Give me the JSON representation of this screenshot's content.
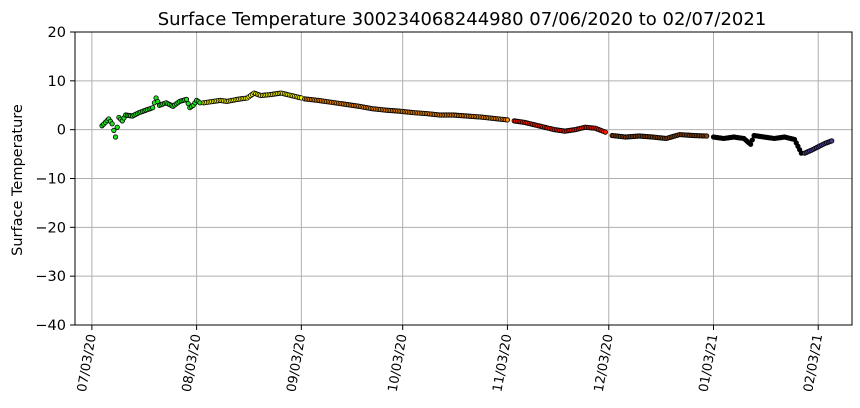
{
  "chart_data": {
    "type": "scatter",
    "title": "Surface Temperature 300234068244980  07/06/2020 to 02/07/2021",
    "xlabel": "",
    "ylabel": "Surface Temperature",
    "x_type": "date",
    "xlim": [
      "2020-06-28",
      "2021-02-13"
    ],
    "ylim": [
      -40,
      20
    ],
    "yticks": [
      -40,
      -30,
      -20,
      -10,
      0,
      10,
      20
    ],
    "ytick_labels": [
      "−40",
      "−30",
      "−20",
      "−10",
      "0",
      "10",
      "20"
    ],
    "xticks": [
      "2020-07-03",
      "2020-08-03",
      "2020-09-03",
      "2020-10-03",
      "2020-11-03",
      "2020-12-03",
      "2021-01-03",
      "2021-02-03"
    ],
    "xtick_labels": [
      "07/03/20",
      "08/03/20",
      "09/03/20",
      "10/03/20",
      "11/03/20",
      "12/03/20",
      "01/03/21",
      "02/03/21"
    ],
    "grid": true,
    "marker_edge_color": "#000000",
    "series": [
      {
        "color": "#22e522",
        "points": [
          [
            "2020-07-06",
            0.8
          ],
          [
            "2020-07-07",
            1.5
          ],
          [
            "2020-07-08",
            2.2
          ],
          [
            "2020-07-09",
            1.2
          ],
          [
            "2020-07-10",
            -1.5
          ],
          [
            "2020-07-11",
            2.5
          ],
          [
            "2020-07-12",
            1.8
          ],
          [
            "2020-07-13",
            3.0
          ],
          [
            "2020-07-15",
            2.8
          ],
          [
            "2020-07-17",
            3.5
          ],
          [
            "2020-07-19",
            4.0
          ],
          [
            "2020-07-21",
            4.5
          ],
          [
            "2020-07-22",
            6.5
          ],
          [
            "2020-07-23",
            5.0
          ],
          [
            "2020-07-25",
            5.5
          ],
          [
            "2020-07-27",
            4.8
          ],
          [
            "2020-07-29",
            5.8
          ],
          [
            "2020-07-31",
            6.2
          ],
          [
            "2020-08-01",
            4.5
          ],
          [
            "2020-08-02",
            5.0
          ],
          [
            "2020-08-03",
            6.0
          ],
          [
            "2020-08-04",
            5.5
          ]
        ]
      },
      {
        "color": "#ffff00",
        "points": [
          [
            "2020-08-05",
            5.5
          ],
          [
            "2020-08-08",
            5.8
          ],
          [
            "2020-08-10",
            6.0
          ],
          [
            "2020-08-12",
            5.8
          ],
          [
            "2020-08-15",
            6.2
          ],
          [
            "2020-08-18",
            6.5
          ],
          [
            "2020-08-20",
            7.5
          ],
          [
            "2020-08-22",
            7.0
          ],
          [
            "2020-08-25",
            7.2
          ],
          [
            "2020-08-28",
            7.5
          ],
          [
            "2020-08-31",
            7.0
          ],
          [
            "2020-09-03",
            6.5
          ]
        ]
      },
      {
        "color": "#ff8c00",
        "points": [
          [
            "2020-09-04",
            6.3
          ],
          [
            "2020-09-08",
            6.0
          ],
          [
            "2020-09-12",
            5.6
          ],
          [
            "2020-09-16",
            5.2
          ],
          [
            "2020-09-20",
            4.8
          ],
          [
            "2020-09-24",
            4.3
          ],
          [
            "2020-09-28",
            4.0
          ],
          [
            "2020-10-02",
            3.8
          ],
          [
            "2020-10-06",
            3.5
          ],
          [
            "2020-10-10",
            3.3
          ],
          [
            "2020-10-14",
            3.0
          ],
          [
            "2020-10-18",
            3.0
          ],
          [
            "2020-10-22",
            2.8
          ],
          [
            "2020-10-26",
            2.6
          ],
          [
            "2020-10-30",
            2.3
          ],
          [
            "2020-11-03",
            2.0
          ]
        ]
      },
      {
        "color": "#ff1a00",
        "points": [
          [
            "2020-11-05",
            1.8
          ],
          [
            "2020-11-08",
            1.5
          ],
          [
            "2020-11-11",
            1.0
          ],
          [
            "2020-11-14",
            0.5
          ],
          [
            "2020-11-17",
            0.0
          ],
          [
            "2020-11-20",
            -0.3
          ],
          [
            "2020-11-23",
            0.0
          ],
          [
            "2020-11-26",
            0.5
          ],
          [
            "2020-11-29",
            0.3
          ],
          [
            "2020-12-02",
            -0.5
          ]
        ]
      },
      {
        "color": "#8b4513",
        "points": [
          [
            "2020-12-04",
            -1.2
          ],
          [
            "2020-12-08",
            -1.5
          ],
          [
            "2020-12-12",
            -1.3
          ],
          [
            "2020-12-16",
            -1.5
          ],
          [
            "2020-12-20",
            -1.8
          ],
          [
            "2020-12-24",
            -1.0
          ],
          [
            "2020-12-28",
            -1.2
          ],
          [
            "2021-01-01",
            -1.3
          ]
        ]
      },
      {
        "color": "#000000",
        "points": [
          [
            "2021-01-03",
            -1.5
          ],
          [
            "2021-01-06",
            -1.8
          ],
          [
            "2021-01-09",
            -1.5
          ],
          [
            "2021-01-12",
            -1.8
          ],
          [
            "2021-01-14",
            -3.0
          ],
          [
            "2021-01-15",
            -1.2
          ],
          [
            "2021-01-18",
            -1.5
          ],
          [
            "2021-01-21",
            -1.8
          ],
          [
            "2021-01-24",
            -1.5
          ],
          [
            "2021-01-27",
            -2.0
          ],
          [
            "2021-01-29",
            -4.8
          ]
        ]
      },
      {
        "color": "#483d8b",
        "points": [
          [
            "2021-01-30",
            -4.8
          ],
          [
            "2021-02-01",
            -4.2
          ],
          [
            "2021-02-03",
            -3.5
          ],
          [
            "2021-02-05",
            -2.8
          ],
          [
            "2021-02-07",
            -2.3
          ]
        ]
      }
    ]
  }
}
